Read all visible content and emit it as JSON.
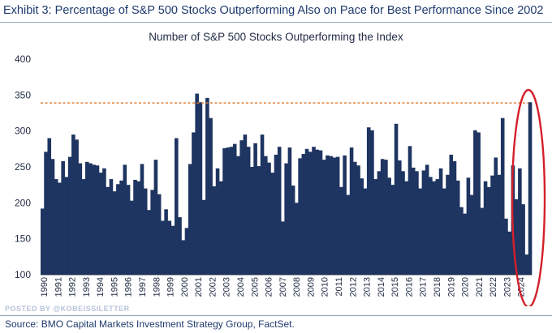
{
  "exhibit_title": "Exhibit 3: Percentage of S&P 500 Stocks Outperforming Also on Pace for Best Performance Since 2002",
  "source": "Source: BMO Capital Markets Investment Strategy Group, FactSet.",
  "watermark": "POSTED BY @KOBEISSILETTER",
  "colors": {
    "bar": "#1e3461",
    "reference_line": "#e07a2e",
    "highlight_ellipse": "#d4202a"
  },
  "chart_data": {
    "type": "bar",
    "title": "Number of S&P 500 Stocks Outperforming the Index",
    "xlabel": "",
    "ylabel": "",
    "ylim": [
      100,
      400
    ],
    "yticks": [
      100,
      150,
      200,
      250,
      300,
      350,
      400
    ],
    "xticks": [
      "1990",
      "1991",
      "1992",
      "1993",
      "1994",
      "1995",
      "1996",
      "1997",
      "1998",
      "1999",
      "2000",
      "2001",
      "2002",
      "2003",
      "2004",
      "2005",
      "2006",
      "2007",
      "2008",
      "2009",
      "2010",
      "2011",
      "2012",
      "2013",
      "2014",
      "2015",
      "2016",
      "2017",
      "2018",
      "2019",
      "2020",
      "2021",
      "2022",
      "2023",
      "2024"
    ],
    "reference_line": 339,
    "grid": false,
    "legend": "none",
    "highlight": "2024 bars circled",
    "values": [
      192,
      271,
      290,
      261,
      233,
      228,
      258,
      236,
      264,
      295,
      288,
      255,
      233,
      257,
      255,
      253,
      252,
      242,
      248,
      222,
      233,
      216,
      226,
      231,
      253,
      225,
      203,
      232,
      230,
      254,
      220,
      190,
      218,
      260,
      212,
      175,
      191,
      175,
      168,
      290,
      180,
      148,
      165,
      254,
      298,
      352,
      340,
      204,
      346,
      318,
      223,
      248,
      230,
      276,
      277,
      278,
      282,
      265,
      287,
      295,
      278,
      250,
      283,
      251,
      295,
      265,
      256,
      242,
      267,
      278,
      174,
      255,
      277,
      224,
      200,
      262,
      268,
      275,
      271,
      278,
      274,
      273,
      260,
      266,
      265,
      263,
      264,
      222,
      266,
      211,
      277,
      257,
      252,
      234,
      220,
      305,
      301,
      233,
      244,
      261,
      260,
      235,
      225,
      310,
      259,
      244,
      230,
      279,
      249,
      244,
      220,
      245,
      253,
      236,
      230,
      233,
      248,
      220,
      239,
      267,
      258,
      231,
      194,
      185,
      235,
      211,
      301,
      298,
      193,
      230,
      222,
      238,
      263,
      239,
      318,
      178,
      160,
      252,
      205,
      248,
      198,
      128,
      340
    ]
  }
}
